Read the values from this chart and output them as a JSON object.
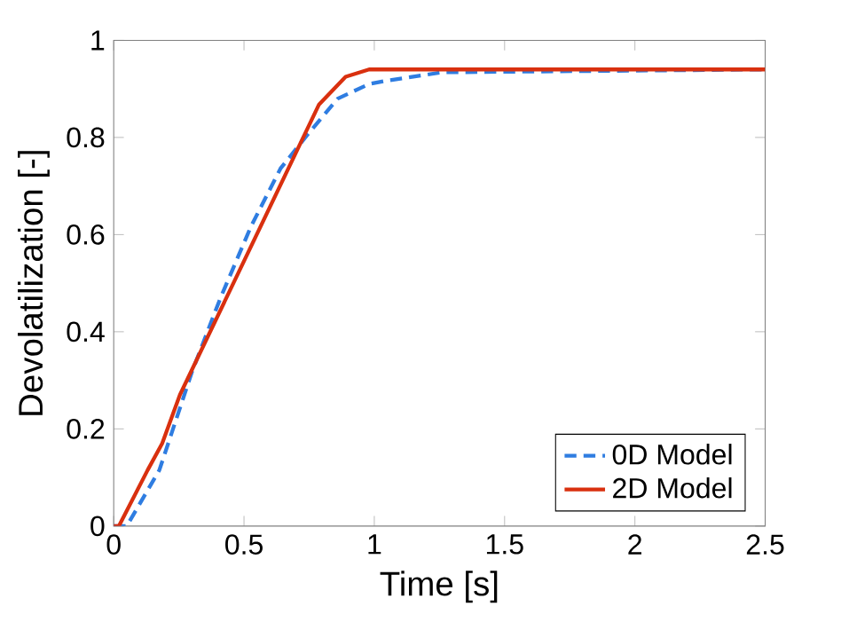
{
  "chart_data": {
    "type": "line",
    "xlabel": "Time [s]",
    "ylabel": "Devolatilization [-]",
    "xlim": [
      0,
      2.5
    ],
    "ylim": [
      0,
      1
    ],
    "xticks": [
      0,
      0.5,
      1,
      1.5,
      2,
      2.5
    ],
    "yticks": [
      0,
      0.2,
      0.4,
      0.6,
      0.8,
      1
    ],
    "legend": "bottom right",
    "grid": false,
    "series": [
      {
        "name": "0D Model",
        "color": "#2f7de1",
        "line_style": "dashed",
        "x": [
          0,
          0.05,
          0.175,
          0.3,
          0.41,
          0.527,
          0.64,
          0.75,
          0.86,
          0.98,
          1.04,
          1.26,
          2.5
        ],
        "values": [
          0,
          0,
          0.115,
          0.317,
          0.47,
          0.617,
          0.736,
          0.81,
          0.88,
          0.91,
          0.916,
          0.934,
          0.94
        ]
      },
      {
        "name": "2D Model",
        "color": "#d9300f",
        "line_style": "solid",
        "x": [
          0,
          0.02,
          0.13,
          0.186,
          0.254,
          0.788,
          0.89,
          0.98,
          2.5
        ],
        "values": [
          0,
          0,
          0.115,
          0.17,
          0.27,
          0.868,
          0.925,
          0.94,
          0.94
        ]
      }
    ]
  }
}
